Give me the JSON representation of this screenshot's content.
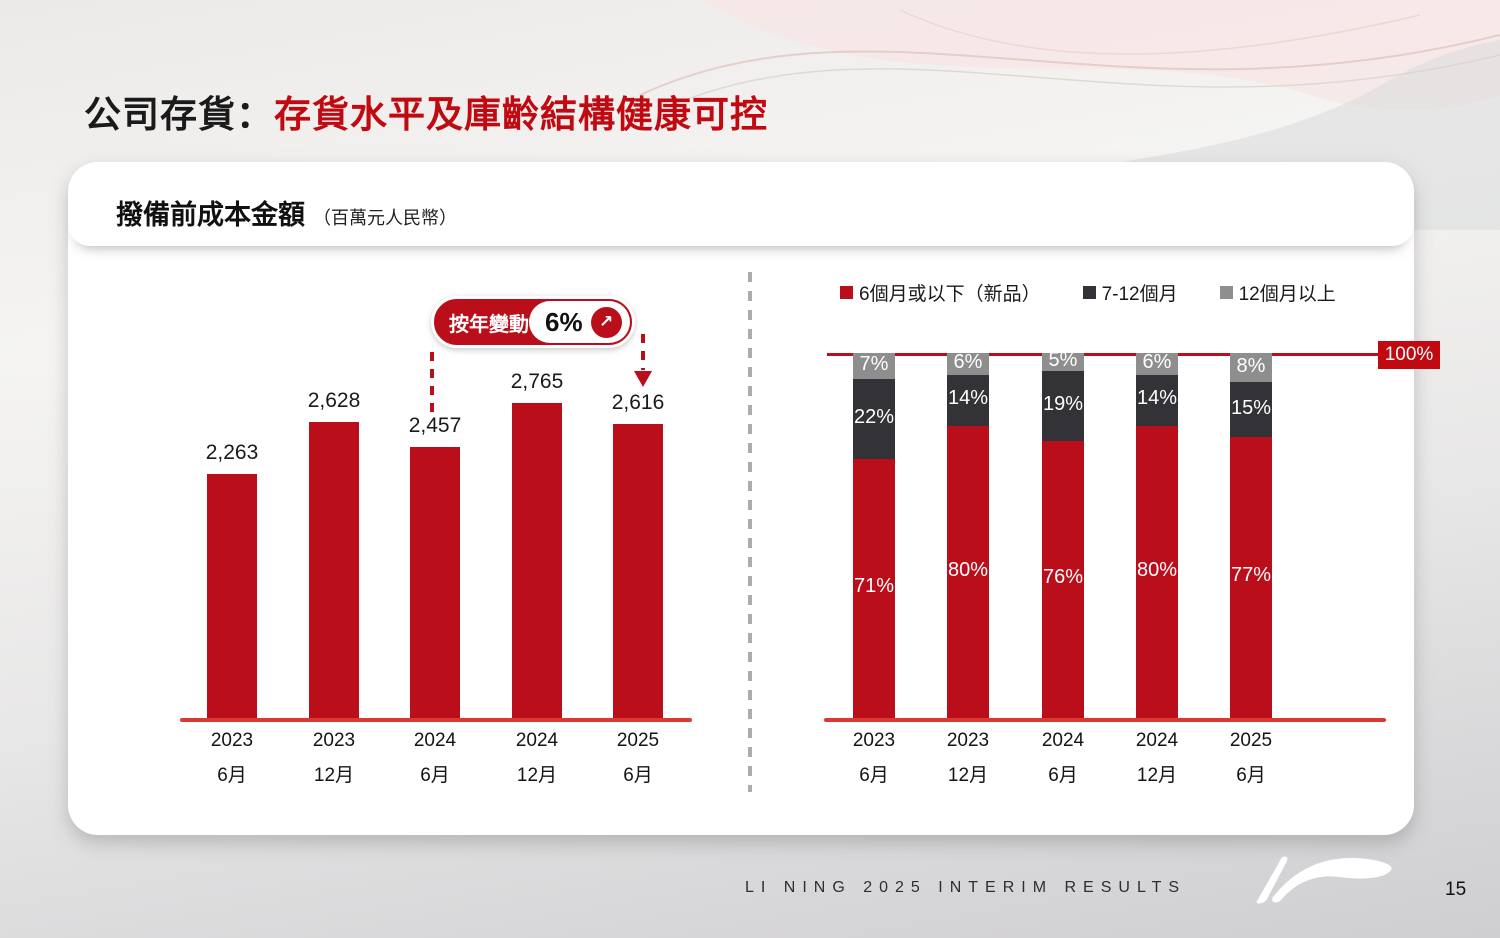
{
  "slide": {
    "title_black": "公司存貨：",
    "title_red": "存貨水平及庫齡結構健康可控"
  },
  "card": {
    "header_title": "撥備前成本金額",
    "header_unit": "（百萬元人民幣）"
  },
  "badge": {
    "label": "按年變動",
    "value": "6%",
    "arrow": "↗"
  },
  "footer": {
    "text": "LI NING 2025 INTERIM RESULTS",
    "page": "15",
    "logo_name": "li-ning-logo"
  },
  "colors": {
    "primary_red": "#BB0E1B",
    "baseline_red": "#DA3931",
    "dark_gray": "#323237",
    "light_gray": "#8E8E8E",
    "title_red": "#C00911",
    "max_label_bg": "#C00911"
  },
  "chart_data": [
    {
      "type": "bar",
      "title": "撥備前成本金額（百萬元人民幣）",
      "categories": [
        {
          "year": "2023",
          "month": "6月"
        },
        {
          "year": "2023",
          "month": "12月"
        },
        {
          "year": "2024",
          "month": "6月"
        },
        {
          "year": "2024",
          "month": "12月"
        },
        {
          "year": "2025",
          "month": "6月"
        }
      ],
      "values": [
        2263,
        2628,
        2457,
        2765,
        2616
      ],
      "labels": [
        "2,263",
        "2,628",
        "2,457",
        "2,765",
        "2,616"
      ],
      "yoy_change": "6%",
      "xlabel": "",
      "ylabel": "百萬元人民幣",
      "ylim": [
        540,
        2900
      ],
      "bar_color": "#BB0E1B",
      "grid": false
    },
    {
      "type": "bar",
      "subtype": "stacked-percentage",
      "categories": [
        {
          "year": "2023",
          "month": "6月"
        },
        {
          "year": "2023",
          "month": "12月"
        },
        {
          "year": "2024",
          "month": "6月"
        },
        {
          "year": "2024",
          "month": "12月"
        },
        {
          "year": "2025",
          "month": "6月"
        }
      ],
      "series": [
        {
          "name": "6個月或以下（新品）",
          "color": "#BB0E1B",
          "values": [
            71,
            80,
            76,
            80,
            77
          ]
        },
        {
          "name": "7-12個月",
          "color": "#323237",
          "values": [
            22,
            14,
            19,
            14,
            15
          ]
        },
        {
          "name": "12個月以上",
          "color": "#8E8E8E",
          "values": [
            7,
            6,
            5,
            6,
            8
          ]
        }
      ],
      "unit": "%",
      "max_label": "100%",
      "ylim": [
        0,
        100
      ],
      "legend_position": "top",
      "grid": false
    }
  ]
}
